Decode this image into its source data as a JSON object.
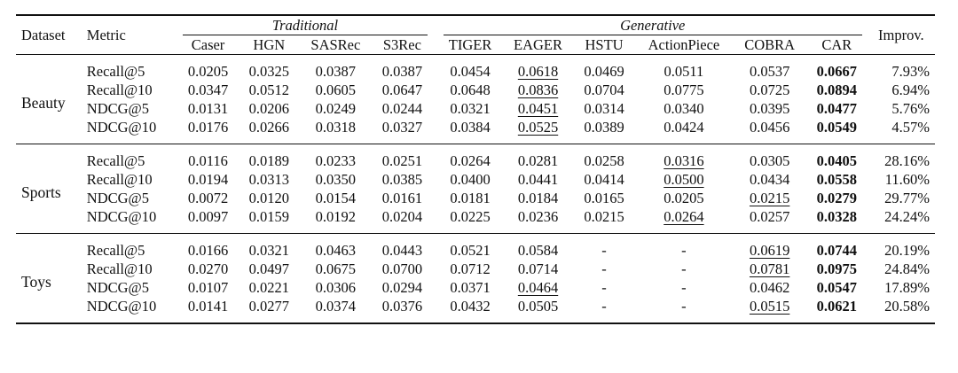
{
  "headers": {
    "dataset": "Dataset",
    "metric": "Metric",
    "traditional": "Traditional",
    "generative": "Generative",
    "improv": "Improv.",
    "models": [
      "Caser",
      "HGN",
      "SASRec",
      "S3Rec",
      "TIGER",
      "EAGER",
      "HSTU",
      "ActionPiece",
      "COBRA",
      "CAR"
    ]
  },
  "groups": [
    {
      "dataset": "Beauty",
      "rows": [
        {
          "metric": "Recall@5",
          "values": [
            "0.0205",
            "0.0325",
            "0.0387",
            "0.0387",
            "0.0454",
            "0.0618",
            "0.0469",
            "0.0511",
            "0.0537",
            "0.0667"
          ],
          "improv": "7.93%",
          "second": 5
        },
        {
          "metric": "Recall@10",
          "values": [
            "0.0347",
            "0.0512",
            "0.0605",
            "0.0647",
            "0.0648",
            "0.0836",
            "0.0704",
            "0.0775",
            "0.0725",
            "0.0894"
          ],
          "improv": "6.94%",
          "second": 5
        },
        {
          "metric": "NDCG@5",
          "values": [
            "0.0131",
            "0.0206",
            "0.0249",
            "0.0244",
            "0.0321",
            "0.0451",
            "0.0314",
            "0.0340",
            "0.0395",
            "0.0477"
          ],
          "improv": "5.76%",
          "second": 5
        },
        {
          "metric": "NDCG@10",
          "values": [
            "0.0176",
            "0.0266",
            "0.0318",
            "0.0327",
            "0.0384",
            "0.0525",
            "0.0389",
            "0.0424",
            "0.0456",
            "0.0549"
          ],
          "improv": "4.57%",
          "second": 5
        }
      ]
    },
    {
      "dataset": "Sports",
      "rows": [
        {
          "metric": "Recall@5",
          "values": [
            "0.0116",
            "0.0189",
            "0.0233",
            "0.0251",
            "0.0264",
            "0.0281",
            "0.0258",
            "0.0316",
            "0.0305",
            "0.0405"
          ],
          "improv": "28.16%",
          "second": 7
        },
        {
          "metric": "Recall@10",
          "values": [
            "0.0194",
            "0.0313",
            "0.0350",
            "0.0385",
            "0.0400",
            "0.0441",
            "0.0414",
            "0.0500",
            "0.0434",
            "0.0558"
          ],
          "improv": "11.60%",
          "second": 7
        },
        {
          "metric": "NDCG@5",
          "values": [
            "0.0072",
            "0.0120",
            "0.0154",
            "0.0161",
            "0.0181",
            "0.0184",
            "0.0165",
            "0.0205",
            "0.0215",
            "0.0279"
          ],
          "improv": "29.77%",
          "second": 8
        },
        {
          "metric": "NDCG@10",
          "values": [
            "0.0097",
            "0.0159",
            "0.0192",
            "0.0204",
            "0.0225",
            "0.0236",
            "0.0215",
            "0.0264",
            "0.0257",
            "0.0328"
          ],
          "improv": "24.24%",
          "second": 7
        }
      ]
    },
    {
      "dataset": "Toys",
      "rows": [
        {
          "metric": "Recall@5",
          "values": [
            "0.0166",
            "0.0321",
            "0.0463",
            "0.0443",
            "0.0521",
            "0.0584",
            "-",
            "-",
            "0.0619",
            "0.0744"
          ],
          "improv": "20.19%",
          "second": 8
        },
        {
          "metric": "Recall@10",
          "values": [
            "0.0270",
            "0.0497",
            "0.0675",
            "0.0700",
            "0.0712",
            "0.0714",
            "-",
            "-",
            "0.0781",
            "0.0975"
          ],
          "improv": "24.84%",
          "second": 8
        },
        {
          "metric": "NDCG@5",
          "values": [
            "0.0107",
            "0.0221",
            "0.0306",
            "0.0294",
            "0.0371",
            "0.0464",
            "-",
            "-",
            "0.0462",
            "0.0547"
          ],
          "improv": "17.89%",
          "second": 5
        },
        {
          "metric": "NDCG@10",
          "values": [
            "0.0141",
            "0.0277",
            "0.0374",
            "0.0376",
            "0.0432",
            "0.0505",
            "-",
            "-",
            "0.0515",
            "0.0621"
          ],
          "improv": "20.58%",
          "second": 8
        }
      ]
    }
  ]
}
